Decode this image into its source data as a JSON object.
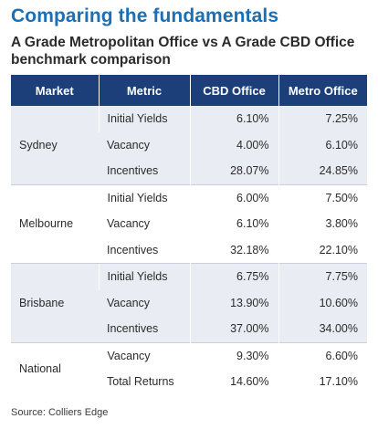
{
  "title": "Comparing the fundamentals",
  "subtitle": "A Grade Metropolitan Office vs A Grade CBD Office benchmark comparison",
  "table": {
    "headers": [
      "Market",
      "Metric",
      "CBD Office",
      "Metro Office"
    ],
    "groups": [
      {
        "market": "Sydney",
        "rows": [
          {
            "metric": "Initial Yields",
            "cbd": "6.10%",
            "metro": "7.25%"
          },
          {
            "metric": "Vacancy",
            "cbd": "4.00%",
            "metro": "6.10%"
          },
          {
            "metric": "Incentives",
            "cbd": "28.07%",
            "metro": "24.85%"
          }
        ]
      },
      {
        "market": "Melbourne",
        "rows": [
          {
            "metric": "Initial Yields",
            "cbd": "6.00%",
            "metro": "7.50%"
          },
          {
            "metric": "Vacancy",
            "cbd": "6.10%",
            "metro": "3.80%"
          },
          {
            "metric": "Incentives",
            "cbd": "32.18%",
            "metro": "22.10%"
          }
        ]
      },
      {
        "market": "Brisbane",
        "rows": [
          {
            "metric": "Initial Yields",
            "cbd": "6.75%",
            "metro": "7.75%"
          },
          {
            "metric": "Vacancy",
            "cbd": "13.90%",
            "metro": "10.60%"
          },
          {
            "metric": "Incentives",
            "cbd": "37.00%",
            "metro": "34.00%"
          }
        ]
      },
      {
        "market": "National",
        "rows": [
          {
            "metric": "Vacancy",
            "cbd": "9.30%",
            "metro": "6.60%"
          },
          {
            "metric": "Total Returns",
            "cbd": "14.60%",
            "metro": "17.10%"
          }
        ]
      }
    ]
  },
  "source": "Source: Colliers Edge",
  "colors": {
    "title": "#1a6fb5",
    "header_bg": "#1c3f7a",
    "band_bg": "#e9ecf2"
  }
}
